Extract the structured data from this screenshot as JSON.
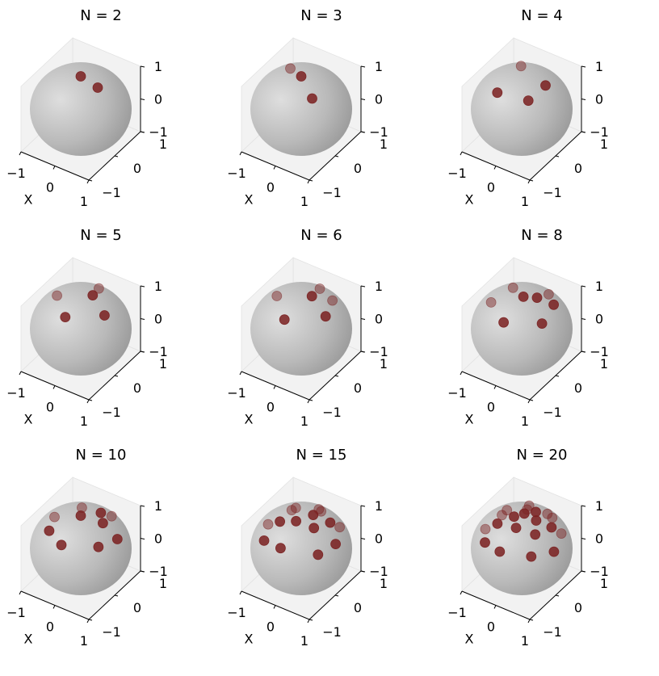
{
  "figure": {
    "background": "#ffffff",
    "sphere_color": "#b9b9b9",
    "point_color": "#7a2020",
    "pane_color": "#f2f2f2"
  },
  "chart_data": [
    {
      "type": "scatter",
      "title": "N = 2",
      "xlabel": "X",
      "xticks": [
        "−1",
        "0",
        "1"
      ],
      "yticks": [
        "−1",
        "0",
        "1"
      ],
      "zticks": [
        "−1",
        "0",
        "1"
      ],
      "xlim": [
        -1,
        1
      ],
      "ylim": [
        -1,
        1
      ],
      "zlim": [
        -1,
        1
      ],
      "grid": false,
      "points": [
        {
          "x": 0.0,
          "y": 0.0,
          "z": 1.0
        },
        {
          "x": 0.5,
          "y": 0.0,
          "z": 0.87
        }
      ]
    },
    {
      "type": "scatter",
      "title": "N = 3",
      "xlabel": "X",
      "xticks": [
        "−1",
        "0",
        "1"
      ],
      "yticks": [
        "−1",
        "0",
        "1"
      ],
      "zticks": [
        "−1",
        "0",
        "1"
      ],
      "xlim": [
        -1,
        1
      ],
      "ylim": [
        -1,
        1
      ],
      "zlim": [
        -1,
        1
      ],
      "grid": false,
      "points": [
        {
          "x": 0.0,
          "y": 0.0,
          "z": 1.0
        },
        {
          "x": 0.55,
          "y": -0.3,
          "z": 0.78
        },
        {
          "x": -0.55,
          "y": 0.3,
          "z": 0.78
        }
      ]
    },
    {
      "type": "scatter",
      "title": "N = 4",
      "xlabel": "X",
      "xticks": [
        "−1",
        "0",
        "1"
      ],
      "yticks": [
        "−1",
        "0",
        "1"
      ],
      "zticks": [
        "−1",
        "0",
        "1"
      ],
      "xlim": [
        -1,
        1
      ],
      "ylim": [
        -1,
        1
      ],
      "zlim": [
        -1,
        1
      ],
      "grid": false,
      "points": [
        {
          "x": -0.3,
          "y": -0.55,
          "z": 0.78
        },
        {
          "x": 0.55,
          "y": 0.2,
          "z": 0.81
        },
        {
          "x": -0.4,
          "y": 0.5,
          "z": 0.77
        },
        {
          "x": 0.5,
          "y": -0.4,
          "z": 0.77
        }
      ]
    },
    {
      "type": "scatter",
      "title": "N = 5",
      "xlabel": "X",
      "xticks": [
        "−1",
        "0",
        "1"
      ],
      "yticks": [
        "−1",
        "0",
        "1"
      ],
      "zticks": [
        "−1",
        "0",
        "1"
      ],
      "xlim": [
        -1,
        1
      ],
      "ylim": [
        -1,
        1
      ],
      "zlim": [
        -1,
        1
      ],
      "grid": false,
      "points": [
        {
          "x": 0.0,
          "y": -0.6,
          "z": 0.8
        },
        {
          "x": 0.7,
          "y": 0.0,
          "z": 0.71
        },
        {
          "x": 0.0,
          "y": 0.7,
          "z": 0.71
        },
        {
          "x": -0.7,
          "y": 0.0,
          "z": 0.71
        },
        {
          "x": 0.2,
          "y": 0.2,
          "z": 0.96
        }
      ]
    },
    {
      "type": "scatter",
      "title": "N = 6",
      "xlabel": "X",
      "xticks": [
        "−1",
        "0",
        "1"
      ],
      "yticks": [
        "−1",
        "0",
        "1"
      ],
      "zticks": [
        "−1",
        "0",
        "1"
      ],
      "xlim": [
        -1,
        1
      ],
      "ylim": [
        -1,
        1
      ],
      "zlim": [
        -1,
        1
      ],
      "grid": false,
      "points": [
        {
          "x": 0.0,
          "y": -0.65,
          "z": 0.76
        },
        {
          "x": 0.72,
          "y": 0.0,
          "z": 0.69
        },
        {
          "x": 0.0,
          "y": 0.72,
          "z": 0.69
        },
        {
          "x": -0.72,
          "y": 0.0,
          "z": 0.69
        },
        {
          "x": 0.2,
          "y": 0.15,
          "z": 0.97
        },
        {
          "x": 0.5,
          "y": 0.55,
          "z": 0.67
        }
      ]
    },
    {
      "type": "scatter",
      "title": "N = 8",
      "xlabel": "X",
      "xticks": [
        "−1",
        "0",
        "1"
      ],
      "yticks": [
        "−1",
        "0",
        "1"
      ],
      "zticks": [
        "−1",
        "0",
        "1"
      ],
      "xlim": [
        -1,
        1
      ],
      "ylim": [
        -1,
        1
      ],
      "zlim": [
        -1,
        1
      ],
      "grid": false,
      "points": [
        {
          "x": 0.0,
          "y": -0.7,
          "z": 0.71
        },
        {
          "x": 0.75,
          "y": -0.2,
          "z": 0.63
        },
        {
          "x": 0.6,
          "y": 0.45,
          "z": 0.66
        },
        {
          "x": -0.6,
          "y": 0.45,
          "z": 0.66
        },
        {
          "x": -0.75,
          "y": -0.2,
          "z": 0.63
        },
        {
          "x": 0.05,
          "y": 0.0,
          "z": 1.0
        },
        {
          "x": 0.3,
          "y": 0.65,
          "z": 0.7
        },
        {
          "x": 0.3,
          "y": 0.2,
          "z": 0.93
        }
      ]
    },
    {
      "type": "scatter",
      "title": "N = 10",
      "xlabel": "X",
      "xticks": [
        "−1",
        "0",
        "1"
      ],
      "yticks": [
        "−1",
        "0",
        "1"
      ],
      "zticks": [
        "−1",
        "0",
        "1"
      ],
      "xlim": [
        -1,
        1
      ],
      "ylim": [
        -1,
        1
      ],
      "zlim": [
        -1,
        1
      ],
      "grid": false,
      "points": [
        {
          "x": 0.0,
          "y": -0.75,
          "z": 0.66
        },
        {
          "x": 0.75,
          "y": -0.3,
          "z": 0.59
        },
        {
          "x": 0.85,
          "y": 0.3,
          "z": 0.43
        },
        {
          "x": 0.3,
          "y": 0.8,
          "z": 0.52
        },
        {
          "x": -0.5,
          "y": 0.7,
          "z": 0.51
        },
        {
          "x": -0.85,
          "y": 0.1,
          "z": 0.52
        },
        {
          "x": -0.55,
          "y": -0.5,
          "z": 0.67
        },
        {
          "x": 0.0,
          "y": 0.0,
          "z": 1.0
        },
        {
          "x": 0.5,
          "y": 0.2,
          "z": 0.84
        },
        {
          "x": 0.25,
          "y": 0.45,
          "z": 0.86
        }
      ]
    },
    {
      "type": "scatter",
      "title": "N = 15",
      "xlabel": "X",
      "xticks": [
        "−1",
        "0",
        "1"
      ],
      "yticks": [
        "−1",
        "0",
        "1"
      ],
      "zticks": [
        "−1",
        "0",
        "1"
      ],
      "xlim": [
        -1,
        1
      ],
      "ylim": [
        -1,
        1
      ],
      "zlim": [
        -1,
        1
      ],
      "grid": false,
      "points": [
        {
          "x": 0.0,
          "y": -0.8,
          "z": 0.6
        },
        {
          "x": 0.8,
          "y": -0.4,
          "z": 0.45
        },
        {
          "x": 0.9,
          "y": 0.15,
          "z": 0.41
        },
        {
          "x": 0.6,
          "y": 0.7,
          "z": 0.39
        },
        {
          "x": -0.1,
          "y": 0.9,
          "z": 0.42
        },
        {
          "x": -0.7,
          "y": 0.55,
          "z": 0.46
        },
        {
          "x": -0.9,
          "y": -0.1,
          "z": 0.42
        },
        {
          "x": -0.6,
          "y": -0.65,
          "z": 0.46
        },
        {
          "x": 0.0,
          "y": -0.2,
          "z": 0.98
        },
        {
          "x": 0.45,
          "y": -0.1,
          "z": 0.89
        },
        {
          "x": 0.55,
          "y": 0.4,
          "z": 0.73
        },
        {
          "x": 0.1,
          "y": 0.55,
          "z": 0.83
        },
        {
          "x": -0.35,
          "y": 0.25,
          "z": 0.9
        },
        {
          "x": -0.4,
          "y": -0.3,
          "z": 0.87
        },
        {
          "x": 0.2,
          "y": 0.2,
          "z": 0.96
        }
      ]
    },
    {
      "type": "scatter",
      "title": "N = 20",
      "xlabel": "X",
      "xticks": [
        "−1",
        "0",
        "1"
      ],
      "yticks": [
        "−1",
        "0",
        "1"
      ],
      "zticks": [
        "−1",
        "0",
        "1"
      ],
      "xlim": [
        -1,
        1
      ],
      "ylim": [
        -1,
        1
      ],
      "zlim": [
        -1,
        1
      ],
      "grid": false,
      "points": [
        {
          "x": 0.0,
          "y": -0.85,
          "z": 0.53
        },
        {
          "x": 0.7,
          "y": -0.55,
          "z": 0.46
        },
        {
          "x": 0.95,
          "y": 0.0,
          "z": 0.31
        },
        {
          "x": 0.75,
          "y": 0.55,
          "z": 0.37
        },
        {
          "x": 0.2,
          "y": 0.92,
          "z": 0.34
        },
        {
          "x": -0.45,
          "y": 0.8,
          "z": 0.4
        },
        {
          "x": -0.85,
          "y": 0.35,
          "z": 0.39
        },
        {
          "x": -0.92,
          "y": -0.2,
          "z": 0.34
        },
        {
          "x": -0.55,
          "y": -0.7,
          "z": 0.46
        },
        {
          "x": 0.1,
          "y": -0.35,
          "z": 0.93
        },
        {
          "x": 0.55,
          "y": -0.2,
          "z": 0.81
        },
        {
          "x": 0.65,
          "y": 0.3,
          "z": 0.7
        },
        {
          "x": 0.3,
          "y": 0.6,
          "z": 0.74
        },
        {
          "x": -0.2,
          "y": 0.55,
          "z": 0.81
        },
        {
          "x": -0.55,
          "y": 0.15,
          "z": 0.82
        },
        {
          "x": -0.45,
          "y": -0.35,
          "z": 0.82
        },
        {
          "x": 0.0,
          "y": 0.1,
          "z": 0.99
        },
        {
          "x": 0.35,
          "y": 0.1,
          "z": 0.93
        },
        {
          "x": -0.15,
          "y": -0.1,
          "z": 0.98
        },
        {
          "x": 0.15,
          "y": 0.35,
          "z": 0.92
        }
      ]
    }
  ]
}
